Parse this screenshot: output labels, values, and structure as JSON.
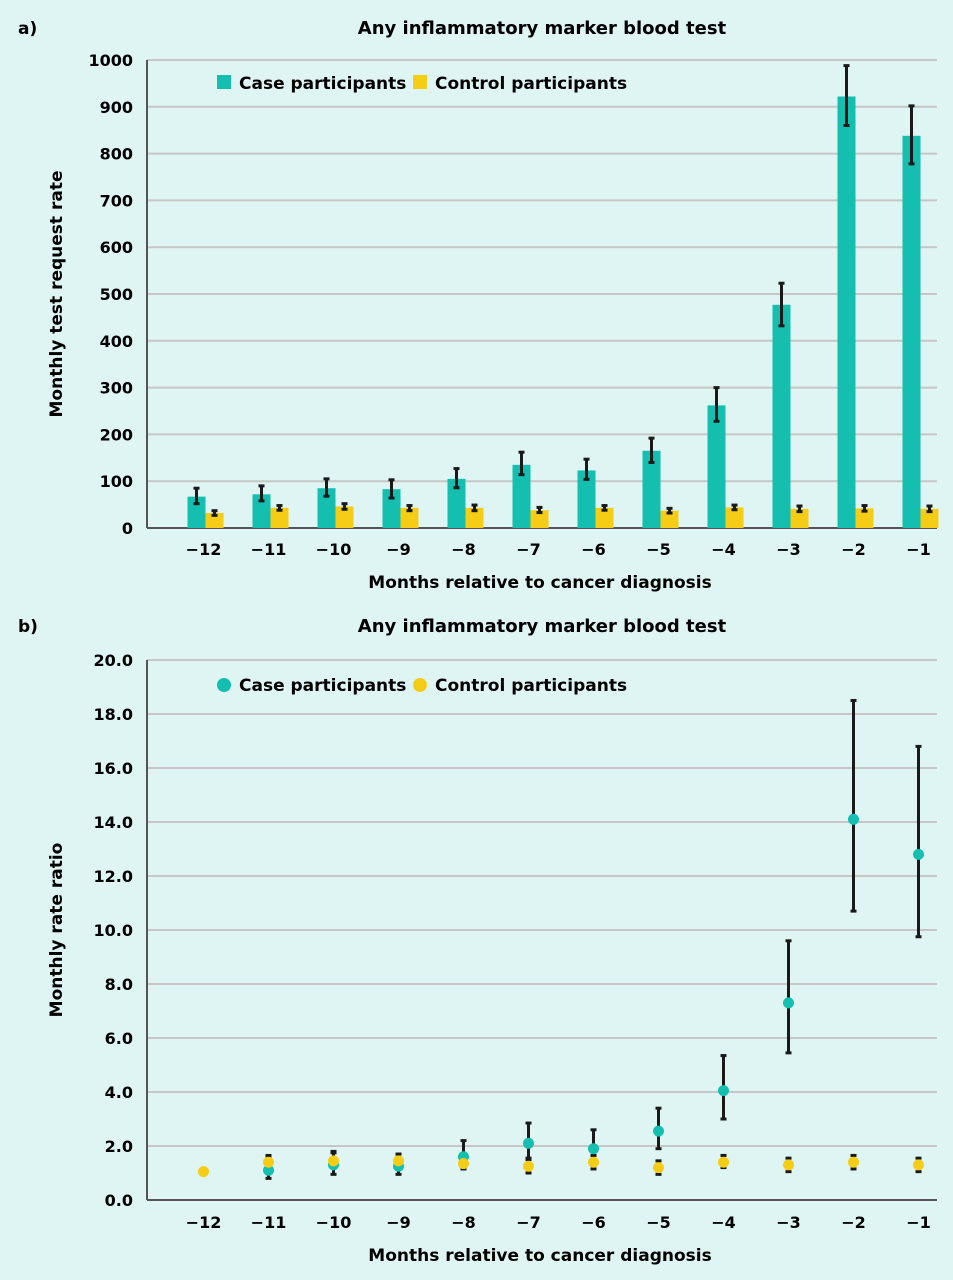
{
  "colors": {
    "case": "#14bfb0",
    "control": "#f6cd16",
    "error": "#1a1a1a",
    "grid": "#c6c6c6",
    "axis": "#555555",
    "background": "#dff5f3"
  },
  "chart_data": [
    {
      "panel": "a)",
      "type": "bar",
      "title": "Any inflammatory marker blood test",
      "xlabel": "Months relative to cancer diagnosis",
      "ylabel": "Monthly test request rate",
      "ylim": [
        0,
        1000
      ],
      "yticks": [
        0,
        100,
        200,
        300,
        400,
        500,
        600,
        700,
        800,
        900,
        1000
      ],
      "ytick_labels": [
        "0",
        "100",
        "200",
        "300",
        "400",
        "500",
        "600",
        "700",
        "800",
        "900",
        "1000"
      ],
      "categories": [
        "−12",
        "−11",
        "−10",
        "−9",
        "−8",
        "−7",
        "−6",
        "−5",
        "−4",
        "−3",
        "−2",
        "−1"
      ],
      "grid": true,
      "legend_position": "top-left",
      "series": [
        {
          "name": "Case participants",
          "key": "case",
          "values": [
            67,
            72,
            85,
            83,
            105,
            135,
            123,
            165,
            262,
            477,
            922,
            838
          ],
          "lower": [
            52,
            58,
            68,
            64,
            86,
            114,
            104,
            140,
            228,
            432,
            860,
            778
          ],
          "upper": [
            85,
            90,
            105,
            103,
            127,
            162,
            147,
            192,
            300,
            523,
            988,
            902
          ]
        },
        {
          "name": "Control participants",
          "key": "control",
          "values": [
            32,
            43,
            46,
            43,
            43,
            38,
            43,
            37,
            44,
            41,
            42,
            41
          ],
          "lower": [
            27,
            38,
            40,
            37,
            37,
            33,
            38,
            32,
            39,
            35,
            36,
            35
          ],
          "upper": [
            37,
            48,
            52,
            48,
            49,
            44,
            48,
            42,
            49,
            47,
            48,
            47
          ]
        }
      ]
    },
    {
      "panel": "b)",
      "type": "scatter",
      "title": "Any inflammatory marker blood test",
      "xlabel": "Months relative to cancer diagnosis",
      "ylabel": "Monthly rate ratio",
      "ylim": [
        0,
        20
      ],
      "yticks": [
        0,
        2,
        4,
        6,
        8,
        10,
        12,
        14,
        16,
        18,
        20
      ],
      "ytick_labels": [
        "0.0",
        "2.0",
        "4.0",
        "6.0",
        "8.0",
        "10.0",
        "12.0",
        "14.0",
        "16.0",
        "18.0",
        "20.0"
      ],
      "categories": [
        "−12",
        "−11",
        "−10",
        "−9",
        "−8",
        "−7",
        "−6",
        "−5",
        "−4",
        "−3",
        "−2",
        "−1"
      ],
      "grid": true,
      "legend_position": "top-left",
      "series": [
        {
          "name": "Case participants",
          "key": "case",
          "values": [
            null,
            1.1,
            1.3,
            1.25,
            1.6,
            2.1,
            1.9,
            2.55,
            4.05,
            7.3,
            14.1,
            12.8
          ],
          "lower": [
            null,
            0.8,
            0.95,
            0.95,
            1.2,
            1.55,
            1.45,
            1.9,
            3.0,
            5.45,
            10.7,
            9.75
          ],
          "upper": [
            null,
            1.55,
            1.8,
            1.7,
            2.2,
            2.85,
            2.6,
            3.4,
            5.35,
            9.6,
            18.5,
            16.8
          ]
        },
        {
          "name": "Control participants",
          "key": "control",
          "values": [
            1.05,
            1.4,
            1.45,
            1.45,
            1.35,
            1.25,
            1.4,
            1.2,
            1.4,
            1.3,
            1.4,
            1.3
          ],
          "lower": [
            null,
            1.2,
            1.2,
            1.2,
            1.15,
            1.0,
            1.15,
            0.95,
            1.2,
            1.05,
            1.15,
            1.05
          ],
          "upper": [
            null,
            1.65,
            1.75,
            1.7,
            1.6,
            1.5,
            1.65,
            1.45,
            1.65,
            1.55,
            1.65,
            1.55
          ]
        }
      ]
    }
  ]
}
